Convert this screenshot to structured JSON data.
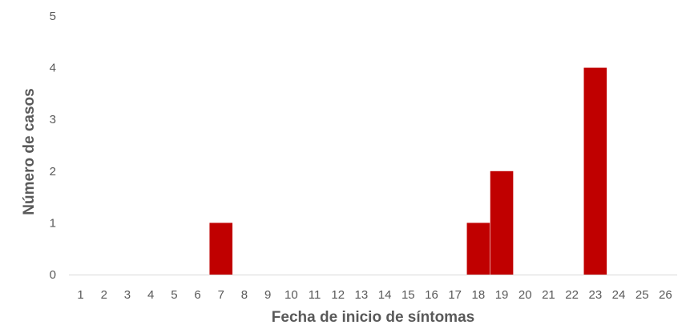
{
  "chart_data": {
    "type": "bar",
    "title": "",
    "xlabel": "Fecha de inicio de síntomas",
    "ylabel": "Número de casos",
    "categories": [
      "1",
      "2",
      "3",
      "4",
      "5",
      "6",
      "7",
      "8",
      "9",
      "10",
      "11",
      "12",
      "13",
      "14",
      "15",
      "16",
      "17",
      "18",
      "19",
      "20",
      "21",
      "22",
      "23",
      "24",
      "25",
      "26"
    ],
    "series": [
      {
        "values": [
          0,
          0,
          0,
          0,
          0,
          0,
          1,
          0,
          0,
          0,
          0,
          0,
          0,
          0,
          0,
          0,
          0,
          1,
          2,
          0,
          0,
          0,
          4,
          0,
          0,
          0
        ]
      }
    ],
    "ylim": [
      0,
      5
    ],
    "yticks": [
      "0",
      "1",
      "2",
      "3",
      "4",
      "5"
    ],
    "grid": false,
    "legend": "none",
    "colors": {
      "bar": "#c00000",
      "axis": "#d9d9d9",
      "text": "#595959"
    }
  }
}
